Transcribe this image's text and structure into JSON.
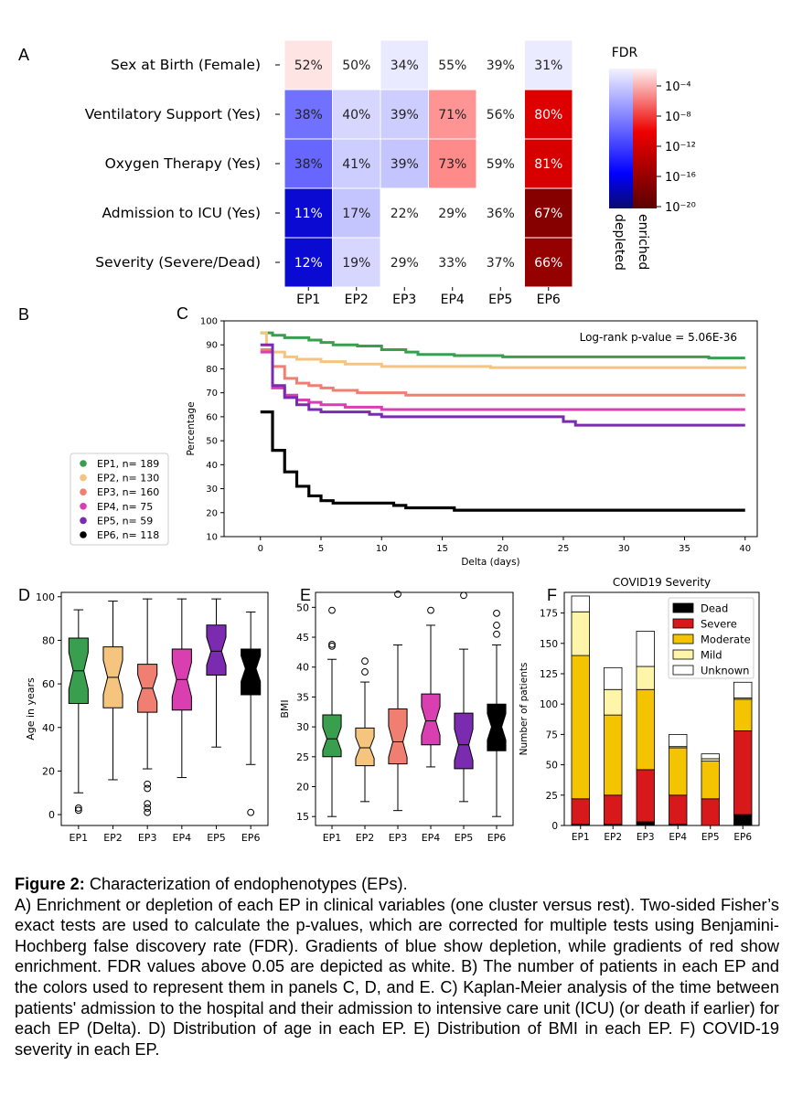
{
  "panels": {
    "a": "A",
    "b": "B",
    "c": "C",
    "d": "D",
    "e": "E",
    "f": "F"
  },
  "heatmap": {
    "rows": [
      "Sex at Birth (Female)",
      "Ventilatory Support (Yes)",
      "Oxygen Therapy (Yes)",
      "Admission to ICU (Yes)",
      "Severity (Severe/Dead)"
    ],
    "cols": [
      "EP1",
      "EP2",
      "EP3",
      "EP4",
      "EP5",
      "EP6"
    ],
    "values": [
      [
        "52%",
        "50%",
        "34%",
        "55%",
        "39%",
        "31%"
      ],
      [
        "38%",
        "40%",
        "39%",
        "71%",
        "56%",
        "80%"
      ],
      [
        "38%",
        "41%",
        "39%",
        "73%",
        "59%",
        "81%"
      ],
      [
        "11%",
        "17%",
        "22%",
        "29%",
        "36%",
        "67%"
      ],
      [
        "12%",
        "19%",
        "29%",
        "33%",
        "37%",
        "66%"
      ]
    ],
    "log10_fdr_signed": [
      [
        0.5,
        0,
        -0.5,
        0,
        0,
        -0.4
      ],
      [
        -7,
        -1.5,
        -2,
        3.8,
        0,
        11
      ],
      [
        -7.5,
        -2,
        -2.5,
        4.2,
        0,
        11.5
      ],
      [
        -15,
        -2.5,
        0,
        0,
        0,
        17
      ],
      [
        -14,
        -1.5,
        0,
        0,
        0,
        16
      ]
    ],
    "colorbar": {
      "title": "FDR",
      "ticks": [
        "10⁻⁴",
        "10⁻⁸",
        "10⁻¹²",
        "10⁻¹⁶",
        "10⁻²⁰"
      ],
      "depleted": "depleted",
      "enriched": "enriched"
    }
  },
  "legend_b": {
    "items": [
      {
        "label": "EP1, n= 189",
        "color": "#3a9e4f"
      },
      {
        "label": "EP2, n= 130",
        "color": "#f5c47f"
      },
      {
        "label": "EP3, n= 160",
        "color": "#f07f72"
      },
      {
        "label": "EP4, n=  75",
        "color": "#d93fb0"
      },
      {
        "label": "EP5, n=  59",
        "color": "#7a2bb0"
      },
      {
        "label": "EP6, n= 118",
        "color": "#000000"
      }
    ]
  },
  "chart_data": [
    {
      "type": "line",
      "panel": "C",
      "title": "",
      "xlabel": "Delta (days)",
      "ylabel": "Percentage",
      "xlim": [
        -3,
        41
      ],
      "ylim": [
        10,
        100
      ],
      "xticks": [
        0,
        5,
        10,
        15,
        20,
        25,
        30,
        35,
        40
      ],
      "yticks": [
        10,
        20,
        30,
        40,
        50,
        60,
        70,
        80,
        90,
        100
      ],
      "annotation": "Log-rank p-value = 5.06E-36",
      "series": [
        {
          "name": "EP1",
          "color": "#3a9e4f",
          "steps": [
            [
              0,
              95
            ],
            [
              1,
              94
            ],
            [
              2,
              93
            ],
            [
              4,
              92
            ],
            [
              5,
              91
            ],
            [
              6,
              90
            ],
            [
              8,
              89.5
            ],
            [
              10,
              88
            ],
            [
              12,
              87
            ],
            [
              13,
              86
            ],
            [
              16,
              85.5
            ],
            [
              20,
              85
            ],
            [
              27,
              85
            ],
            [
              35,
              85
            ],
            [
              37,
              84.5
            ],
            [
              40,
              84.5
            ]
          ]
        },
        {
          "name": "EP2",
          "color": "#f5c47f",
          "steps": [
            [
              0,
              95
            ],
            [
              0.5,
              90
            ],
            [
              1,
              87
            ],
            [
              2,
              85
            ],
            [
              3,
              84
            ],
            [
              5,
              83
            ],
            [
              7,
              82
            ],
            [
              10,
              81
            ],
            [
              14,
              81
            ],
            [
              19,
              80.5
            ],
            [
              40,
              80
            ]
          ]
        },
        {
          "name": "EP3",
          "color": "#f07f72",
          "steps": [
            [
              0,
              88
            ],
            [
              1,
              81
            ],
            [
              2,
              76
            ],
            [
              3,
              74
            ],
            [
              4,
              73
            ],
            [
              5,
              72
            ],
            [
              6,
              71
            ],
            [
              8,
              70
            ],
            [
              12,
              69
            ],
            [
              20,
              69
            ],
            [
              40,
              69
            ]
          ]
        },
        {
          "name": "EP4",
          "color": "#d93fb0",
          "steps": [
            [
              0,
              87
            ],
            [
              1,
              72
            ],
            [
              2,
              69
            ],
            [
              3,
              67
            ],
            [
              4,
              66
            ],
            [
              5,
              65
            ],
            [
              7,
              64
            ],
            [
              10,
              63
            ],
            [
              15,
              63
            ],
            [
              40,
              63
            ]
          ]
        },
        {
          "name": "EP5",
          "color": "#7a2bb0",
          "steps": [
            [
              0,
              90
            ],
            [
              1,
              73
            ],
            [
              2,
              68
            ],
            [
              3,
              65
            ],
            [
              4,
              63
            ],
            [
              5,
              62
            ],
            [
              9,
              61
            ],
            [
              10,
              60
            ],
            [
              25,
              58
            ],
            [
              26,
              56.5
            ],
            [
              40,
              56.5
            ]
          ]
        },
        {
          "name": "EP6",
          "color": "#000000",
          "steps": [
            [
              0,
              62
            ],
            [
              1,
              46
            ],
            [
              2,
              37
            ],
            [
              3,
              31
            ],
            [
              4,
              27
            ],
            [
              5,
              25
            ],
            [
              6,
              24
            ],
            [
              11,
              23
            ],
            [
              12,
              22
            ],
            [
              16,
              21
            ],
            [
              40,
              21
            ]
          ]
        }
      ]
    },
    {
      "type": "box",
      "panel": "D",
      "xlabel": "",
      "ylabel": "Age in years",
      "ylim": [
        -5,
        102
      ],
      "yticks": [
        0,
        20,
        40,
        60,
        80,
        100
      ],
      "categories": [
        "EP1",
        "EP2",
        "EP3",
        "EP4",
        "EP5",
        "EP6"
      ],
      "colors": [
        "#3a9e4f",
        "#f5c47f",
        "#f07f72",
        "#d93fb0",
        "#7a2bb0",
        "#000000"
      ],
      "boxes": [
        {
          "q1": 51,
          "med": 66,
          "q3": 81,
          "lo": 10,
          "hi": 94,
          "out": [
            2,
            3
          ]
        },
        {
          "q1": 49,
          "med": 63,
          "q3": 77,
          "lo": 16,
          "hi": 98,
          "out": []
        },
        {
          "q1": 47,
          "med": 58,
          "q3": 69,
          "lo": 21,
          "hi": 99,
          "out": [
            1,
            3,
            5,
            12,
            14
          ]
        },
        {
          "q1": 48,
          "med": 62,
          "q3": 76,
          "lo": 17,
          "hi": 99,
          "out": []
        },
        {
          "q1": 64,
          "med": 75,
          "q3": 87,
          "lo": 31,
          "hi": 99,
          "out": []
        },
        {
          "q1": 55,
          "med": 67,
          "q3": 76,
          "lo": 23,
          "hi": 93,
          "out": [
            1
          ]
        }
      ]
    },
    {
      "type": "box",
      "panel": "E",
      "xlabel": "",
      "ylabel": "BMI",
      "ylim": [
        13.5,
        52.5
      ],
      "yticks": [
        15,
        20,
        25,
        30,
        35,
        40,
        45,
        50
      ],
      "categories": [
        "EP1",
        "EP2",
        "EP3",
        "EP4",
        "EP5",
        "EP6"
      ],
      "colors": [
        "#3a9e4f",
        "#f5c47f",
        "#f07f72",
        "#d93fb0",
        "#7a2bb0",
        "#000000"
      ],
      "boxes": [
        {
          "q1": 25,
          "med": 28,
          "q3": 32,
          "lo": 15,
          "hi": 41.3,
          "out": [
            43.5,
            43.8,
            49.5
          ]
        },
        {
          "q1": 23.5,
          "med": 26.5,
          "q3": 29.8,
          "lo": 17.5,
          "hi": 37.5,
          "out": [
            39.2,
            41
          ]
        },
        {
          "q1": 23.8,
          "med": 27.5,
          "q3": 33,
          "lo": 16,
          "hi": 43.7,
          "out": [
            52.2
          ]
        },
        {
          "q1": 27,
          "med": 31,
          "q3": 35.5,
          "lo": 23.3,
          "hi": 47,
          "out": [
            49.5
          ]
        },
        {
          "q1": 23,
          "med": 27,
          "q3": 32.3,
          "lo": 17.5,
          "hi": 43,
          "out": [
            52
          ]
        },
        {
          "q1": 26,
          "med": 30,
          "q3": 33.8,
          "lo": 15,
          "hi": 43.7,
          "out": [
            45.5,
            47,
            49
          ]
        }
      ]
    },
    {
      "type": "bar",
      "stacked": true,
      "panel": "F",
      "title": "COVID19 Severity",
      "xlabel": "",
      "ylabel": "Number of patients",
      "ylim": [
        0,
        192
      ],
      "yticks": [
        0,
        25,
        50,
        75,
        100,
        125,
        150,
        175
      ],
      "categories": [
        "EP1",
        "EP2",
        "EP3",
        "EP4",
        "EP5",
        "EP6"
      ],
      "series": [
        {
          "name": "Dead",
          "color": "#000000",
          "values": [
            1,
            1,
            3,
            1,
            0,
            9
          ]
        },
        {
          "name": "Severe",
          "color": "#d7191c",
          "values": [
            21,
            24,
            43,
            24,
            22,
            69
          ]
        },
        {
          "name": "Moderate",
          "color": "#f5c400",
          "values": [
            118,
            66,
            66,
            39,
            31,
            26
          ]
        },
        {
          "name": "Mild",
          "color": "#fff5a8",
          "values": [
            36,
            21,
            19,
            1,
            2,
            1
          ]
        },
        {
          "name": "Unknown",
          "color": "#ffffff",
          "values": [
            13,
            18,
            29,
            10,
            4,
            13
          ]
        }
      ]
    }
  ],
  "caption": {
    "head": "Figure 2:",
    "head_rest": " Characterization of endophenotypes (EPs).",
    "body": "A) Enrichment or depletion of each EP in clinical variables (one cluster versus rest). Two-sided Fisher’s exact tests are used to calculate the p-values, which are corrected for multiple tests using Benjamini-Hochberg false discovery rate (FDR). Gradients of blue show depletion, while gradients of red show enrichment. FDR values above 0.05 are depicted as white. B) The number of patients in each EP and the colors used to represent them in panels C, D, and E. C) Kaplan-Meier analysis of the time between patients' admission to the hospital and their admission to intensive care unit (ICU) (or death if earlier) for each EP (Delta). D) Distribution of age in each EP. E) Distribution of BMI in each EP. F) COVID-19 severity in each EP."
  }
}
